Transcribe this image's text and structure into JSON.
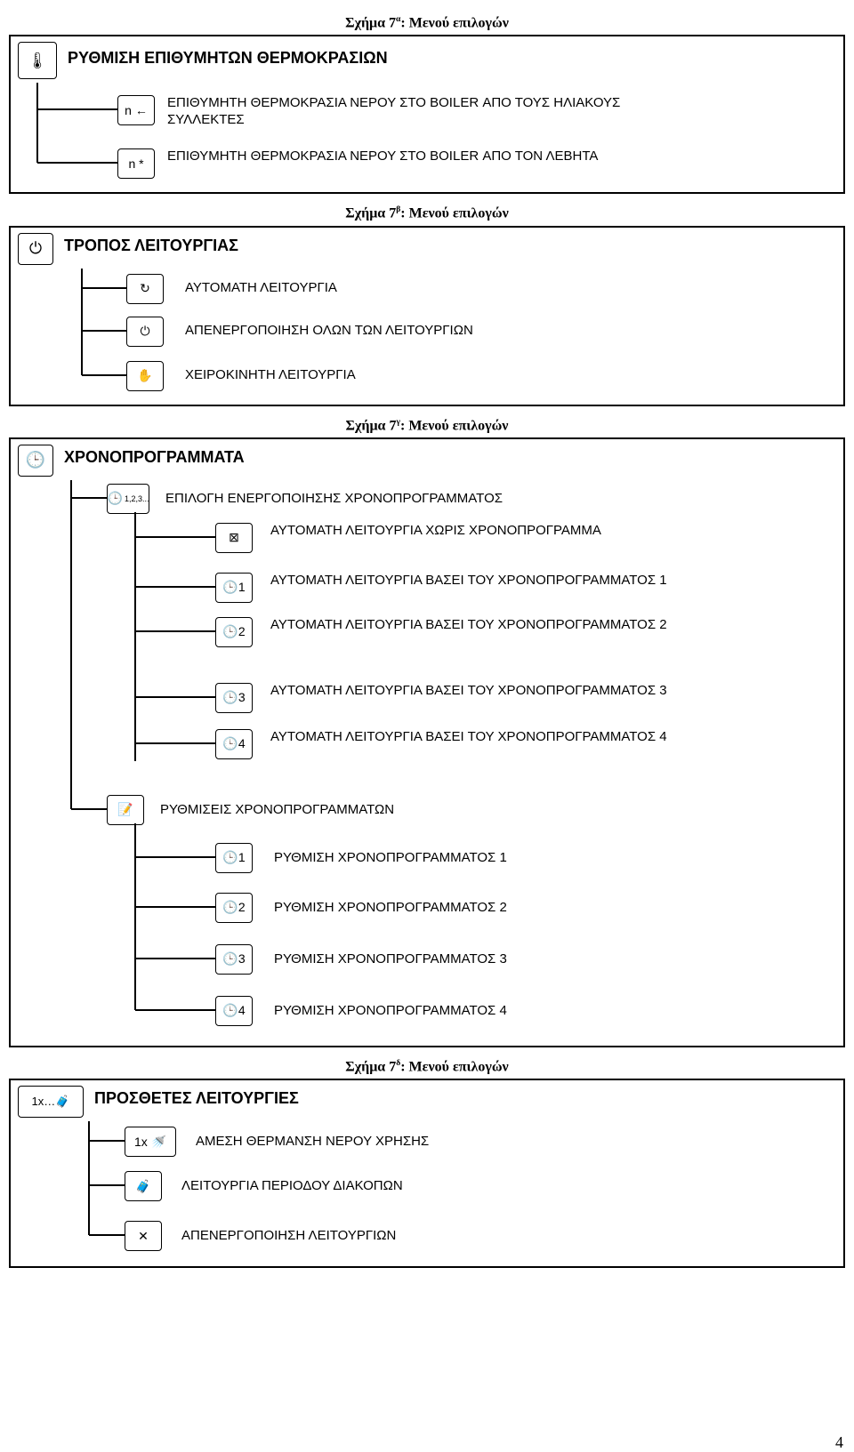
{
  "captions": {
    "a": {
      "prefix": "Σχήμα 7",
      "sup": "α",
      "suffix": ": Μενού επιλογών"
    },
    "b": {
      "prefix": "Σχήμα 7",
      "sup": "β",
      "suffix": ": Μενού επιλογών"
    },
    "c": {
      "prefix": "Σχήμα 7",
      "sup": "γ",
      "suffix": ": Μενού επιλογών"
    },
    "d": {
      "prefix": "Σχήμα 7",
      "sup": "δ",
      "suffix": ": Μενού επιλογών"
    }
  },
  "panel_a": {
    "icon_glyph": "🌡",
    "title": "ΡΥΘΜΙΣΗ ΕΠΙΘΥΜΗΤΩΝ ΘΕΡΜΟΚΡΑΣΙΩΝ",
    "items": [
      {
        "icon": "n ←",
        "text": "ΕΠΙΘΥΜΗΤΗ ΘΕΡΜΟΚΡΑΣΙΑ ΝΕΡΟΥ ΣΤΟ BOILER ΑΠΟ ΤΟΥΣ ΗΛΙΑΚΟΥΣ ΣΥΛΛΕΚΤΕΣ"
      },
      {
        "icon": "n *",
        "text": "ΕΠΙΘΥΜΗΤΗ ΘΕΡΜΟΚΡΑΣΙΑ ΝΕΡΟΥ ΣΤΟ BOILER ΑΠΟ ΤΟΝ ΛΕΒΗΤΑ"
      }
    ]
  },
  "panel_b": {
    "icon_glyph": "⏻",
    "title": "ΤΡΟΠΟΣ ΛΕΙΤΟΥΡΓΙΑΣ",
    "items": [
      {
        "icon": "↻",
        "text": "ΑΥΤΟΜΑΤΗ ΛΕΙΤΟΥΡΓΙΑ"
      },
      {
        "icon": "⏻",
        "text": "ΑΠΕΝΕΡΓΟΠΟΙΗΣΗ ΟΛΩΝ ΤΩΝ  ΛΕΙΤΟΥΡΓΙΩΝ"
      },
      {
        "icon": "✋",
        "text": "ΧΕΙΡΟΚΙΝΗΤΗ ΛΕΙΤΟΥΡΓΙΑ"
      }
    ]
  },
  "panel_c": {
    "icon_glyph": "🕒",
    "title": "ΧΡΟΝΟΠΡΟΓΡΑΜΜΑΤΑ",
    "sub1": {
      "icon": "🕒",
      "icon_sub": "1,2,3...",
      "text": "ΕΠΙΛΟΓΗ ΕΝΕΡΓΟΠΟΙΗΣΗΣ ΧΡΟΝΟΠΡΟΓΡΑΜΜΑΤΟΣ",
      "items": [
        {
          "icon": "⊠",
          "text": "ΑΥΤΟΜΑΤΗ ΛΕΙΤΟΥΡΓΙΑ ΧΩΡΙΣ ΧΡΟΝΟΠΡΟΓΡΑΜΜΑ"
        },
        {
          "icon": "🕒1",
          "text": "ΑΥΤΟΜΑΤΗ ΛΕΙΤΟΥΡΓΙΑ ΒΑΣΕΙ ΤΟΥ ΧΡΟΝΟΠΡΟΓΡΑΜΜΑΤΟΣ 1"
        },
        {
          "icon": "🕒2",
          "text": "ΑΥΤΟΜΑΤΗ ΛΕΙΤΟΥΡΓΙΑ ΒΑΣΕΙ ΤΟΥ ΧΡΟΝΟΠΡΟΓΡΑΜΜΑΤΟΣ 2"
        },
        {
          "icon": "🕒3",
          "text": "ΑΥΤΟΜΑΤΗ ΛΕΙΤΟΥΡΓΙΑ ΒΑΣΕΙ ΤΟΥ ΧΡΟΝΟΠΡΟΓΡΑΜΜΑΤΟΣ 3"
        },
        {
          "icon": "🕒4",
          "text": "ΑΥΤΟΜΑΤΗ ΛΕΙΤΟΥΡΓΙΑ ΒΑΣΕΙ ΤΟΥ ΧΡΟΝΟΠΡΟΓΡΑΜΜΑΤΟΣ 4"
        }
      ]
    },
    "sub2": {
      "icon": "📝",
      "text": "ΡΥΘΜΙΣΕΙΣ ΧΡΟΝΟΠΡΟΓΡΑΜΜΑΤΩΝ",
      "items": [
        {
          "icon": "🕒1",
          "text": "ΡΥΘΜΙΣΗ ΧΡΟΝΟΠΡΟΓΡΑΜΜΑΤΟΣ 1"
        },
        {
          "icon": "🕒2",
          "text": "ΡΥΘΜΙΣΗ ΧΡΟΝΟΠΡΟΓΡΑΜΜΑΤΟΣ 2"
        },
        {
          "icon": "🕒3",
          "text": "ΡΥΘΜΙΣΗ ΧΡΟΝΟΠΡΟΓΡΑΜΜΑΤΟΣ 3"
        },
        {
          "icon": "🕒4",
          "text": "ΡΥΘΜΙΣΗ ΧΡΟΝΟΠΡΟΓΡΑΜΜΑΤΟΣ 4"
        }
      ]
    }
  },
  "panel_d": {
    "icon_glyph": "1x…🧳",
    "title": "ΠΡΟΣΘΕΤΕΣ ΛΕΙΤΟΥΡΓΙΕΣ",
    "items": [
      {
        "icon": "1x 🚿",
        "text": "ΑΜΕΣΗ ΘΕΡΜΑΝΣΗ ΝΕΡΟΥ ΧΡΗΣΗΣ"
      },
      {
        "icon": "🧳",
        "text": "ΛΕΙΤΟΥΡΓΙΑ ΠΕΡΙΟΔΟΥ ΔΙΑΚΟΠΩΝ"
      },
      {
        "icon": "✕",
        "text": "ΑΠΕΝΕΡΓΟΠΟΙΗΣΗ ΛΕΙΤΟΥΡΓΙΩΝ"
      }
    ]
  },
  "page_number": "4",
  "colors": {
    "line": "#000000",
    "bg": "#ffffff"
  }
}
